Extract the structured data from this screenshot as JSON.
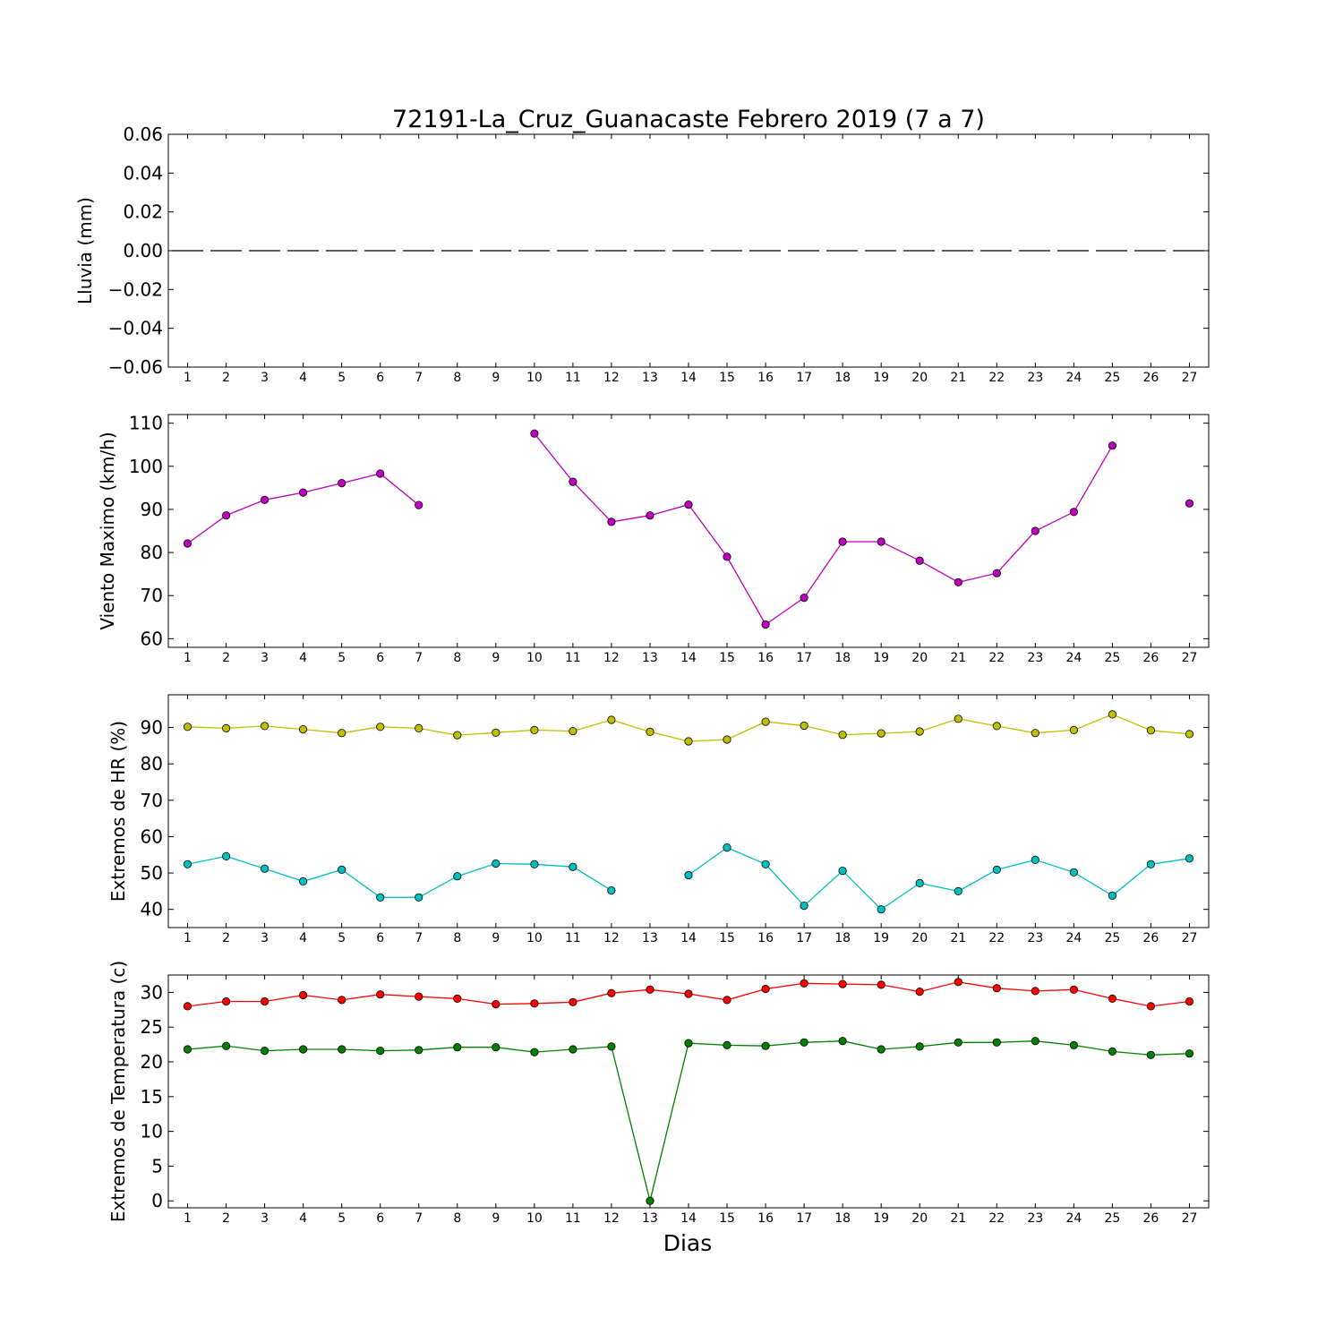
{
  "figure": {
    "title": "72191-La_Cruz_Guanacaste Febrero 2019  (7 a 7)",
    "xlabel": "Dias"
  },
  "chart_data": [
    {
      "type": "line",
      "ylabel": "Lluvia (mm)",
      "ylim": [
        -0.06,
        0.06
      ],
      "yticks": [
        0.06,
        0.04,
        0.02,
        0.0,
        -0.02,
        -0.04,
        -0.06
      ],
      "ytick_labels": [
        "0.06",
        "0.04",
        "0.02",
        "0.00",
        "−0.02",
        "−0.04",
        "−0.06"
      ],
      "xlim": [
        0.5,
        27.5
      ],
      "xticks": [
        1,
        2,
        3,
        4,
        5,
        6,
        7,
        8,
        9,
        10,
        11,
        12,
        13,
        14,
        15,
        16,
        17,
        18,
        19,
        20,
        21,
        22,
        23,
        24,
        25,
        26,
        27
      ],
      "hline": {
        "y": 0.0,
        "color": "#000000",
        "style": "dashed"
      },
      "series": []
    },
    {
      "type": "line",
      "ylabel": "Viento Maximo (km/h)",
      "ylim": [
        58,
        112
      ],
      "yticks": [
        110,
        100,
        90,
        80,
        70,
        60
      ],
      "ytick_labels": [
        "110",
        "100",
        "90",
        "80",
        "70",
        "60"
      ],
      "xlim": [
        0.5,
        27.5
      ],
      "xticks": [
        1,
        2,
        3,
        4,
        5,
        6,
        7,
        8,
        9,
        10,
        11,
        12,
        13,
        14,
        15,
        16,
        17,
        18,
        19,
        20,
        21,
        22,
        23,
        24,
        25,
        26,
        27
      ],
      "series": [
        {
          "color": "#bf00bf",
          "x": [
            1,
            2,
            3,
            4,
            5,
            6,
            7,
            8,
            9,
            10,
            11,
            12,
            13,
            14,
            15,
            16,
            17,
            18,
            19,
            20,
            21,
            22,
            23,
            24,
            25,
            26,
            27
          ],
          "y": [
            82.1,
            88.6,
            92.2,
            93.9,
            96.1,
            98.3,
            91.0,
            null,
            null,
            107.6,
            96.4,
            87.1,
            88.6,
            91.1,
            79.0,
            63.3,
            69.5,
            82.5,
            82.5,
            78.1,
            73.1,
            75.2,
            85.0,
            89.4,
            104.8,
            null,
            91.4
          ]
        }
      ]
    },
    {
      "type": "line",
      "ylabel": "Extremos de HR (%)",
      "ylim": [
        35,
        99
      ],
      "yticks": [
        90,
        80,
        70,
        60,
        50,
        40
      ],
      "ytick_labels": [
        "90",
        "80",
        "70",
        "60",
        "50",
        "40"
      ],
      "xlim": [
        0.5,
        27.5
      ],
      "xticks": [
        1,
        2,
        3,
        4,
        5,
        6,
        7,
        8,
        9,
        10,
        11,
        12,
        13,
        14,
        15,
        16,
        17,
        18,
        19,
        20,
        21,
        22,
        23,
        24,
        25,
        26,
        27
      ],
      "series": [
        {
          "color": "#bfbf00",
          "x": [
            1,
            2,
            3,
            4,
            5,
            6,
            7,
            8,
            9,
            10,
            11,
            12,
            13,
            14,
            15,
            16,
            17,
            18,
            19,
            20,
            21,
            22,
            23,
            24,
            25,
            26,
            27
          ],
          "y": [
            90.2,
            89.8,
            90.4,
            89.5,
            88.5,
            90.2,
            89.8,
            87.9,
            88.6,
            89.3,
            89.0,
            92.1,
            88.8,
            86.2,
            86.7,
            91.6,
            90.5,
            88.0,
            88.4,
            88.9,
            92.4,
            90.4,
            88.5,
            89.3,
            93.6,
            89.2,
            88.2
          ]
        },
        {
          "color": "#00bfbf",
          "x": [
            1,
            2,
            3,
            4,
            5,
            6,
            7,
            8,
            9,
            10,
            11,
            12,
            13,
            14,
            15,
            16,
            17,
            18,
            19,
            20,
            21,
            22,
            23,
            24,
            25,
            26,
            27
          ],
          "y": [
            52.4,
            54.6,
            51.2,
            47.7,
            50.9,
            43.3,
            43.3,
            49.1,
            52.6,
            52.4,
            51.7,
            45.2,
            null,
            49.4,
            57.0,
            52.4,
            41.0,
            50.6,
            40.0,
            47.2,
            45.0,
            50.9,
            53.6,
            50.2,
            43.8,
            52.4,
            54.0
          ]
        }
      ]
    },
    {
      "type": "line",
      "ylabel": "Extremos de Temperatura (c)",
      "ylim": [
        -1,
        32.5
      ],
      "yticks": [
        30,
        25,
        20,
        15,
        10,
        5,
        0
      ],
      "ytick_labels": [
        "30",
        "25",
        "20",
        "15",
        "10",
        "5",
        "0"
      ],
      "xlim": [
        0.5,
        27.5
      ],
      "xticks": [
        1,
        2,
        3,
        4,
        5,
        6,
        7,
        8,
        9,
        10,
        11,
        12,
        13,
        14,
        15,
        16,
        17,
        18,
        19,
        20,
        21,
        22,
        23,
        24,
        25,
        26,
        27
      ],
      "series": [
        {
          "color": "#ff0000",
          "x": [
            1,
            2,
            3,
            4,
            5,
            6,
            7,
            8,
            9,
            10,
            11,
            12,
            13,
            14,
            15,
            16,
            17,
            18,
            19,
            20,
            21,
            22,
            23,
            24,
            25,
            26,
            27
          ],
          "y": [
            28.0,
            28.7,
            28.7,
            29.6,
            28.9,
            29.7,
            29.4,
            29.1,
            28.3,
            28.4,
            28.6,
            29.9,
            30.4,
            29.8,
            28.9,
            30.5,
            31.3,
            31.2,
            31.1,
            30.1,
            31.5,
            30.6,
            30.2,
            30.4,
            29.1,
            28.0,
            28.7
          ]
        },
        {
          "color": "#008000",
          "x": [
            1,
            2,
            3,
            4,
            5,
            6,
            7,
            8,
            9,
            10,
            11,
            12,
            13,
            14,
            15,
            16,
            17,
            18,
            19,
            20,
            21,
            22,
            23,
            24,
            25,
            26,
            27
          ],
          "y": [
            21.8,
            22.3,
            21.6,
            21.8,
            21.8,
            21.6,
            21.7,
            22.1,
            22.1,
            21.4,
            21.8,
            22.2,
            0.0,
            22.7,
            22.4,
            22.3,
            22.8,
            23.0,
            21.8,
            22.2,
            22.8,
            22.8,
            23.0,
            22.4,
            21.5,
            21.0,
            21.2
          ]
        }
      ]
    }
  ]
}
